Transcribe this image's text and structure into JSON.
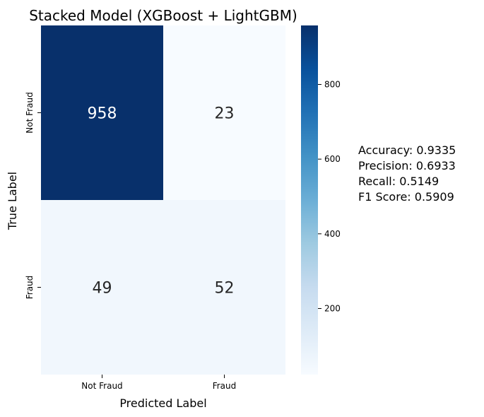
{
  "chart_data": {
    "type": "heatmap",
    "title": "Stacked Model (XGBoost + LightGBM)",
    "xlabel": "Predicted Label",
    "ylabel": "True Label",
    "x_categories": [
      "Not Fraud",
      "Fraud"
    ],
    "y_categories": [
      "Not Fraud",
      "Fraud"
    ],
    "values": [
      [
        958,
        23
      ],
      [
        49,
        52
      ]
    ],
    "colormap": "Blues",
    "colorbar": {
      "range": [
        23,
        958
      ],
      "ticks": [
        200,
        400,
        600,
        800
      ],
      "tick_labels": [
        "200",
        "400",
        "600",
        "800"
      ]
    },
    "metrics": [
      "Accuracy: 0.9335",
      "Precision: 0.6933",
      "Recall: 0.5149",
      "F1 Score: 0.5909"
    ]
  }
}
